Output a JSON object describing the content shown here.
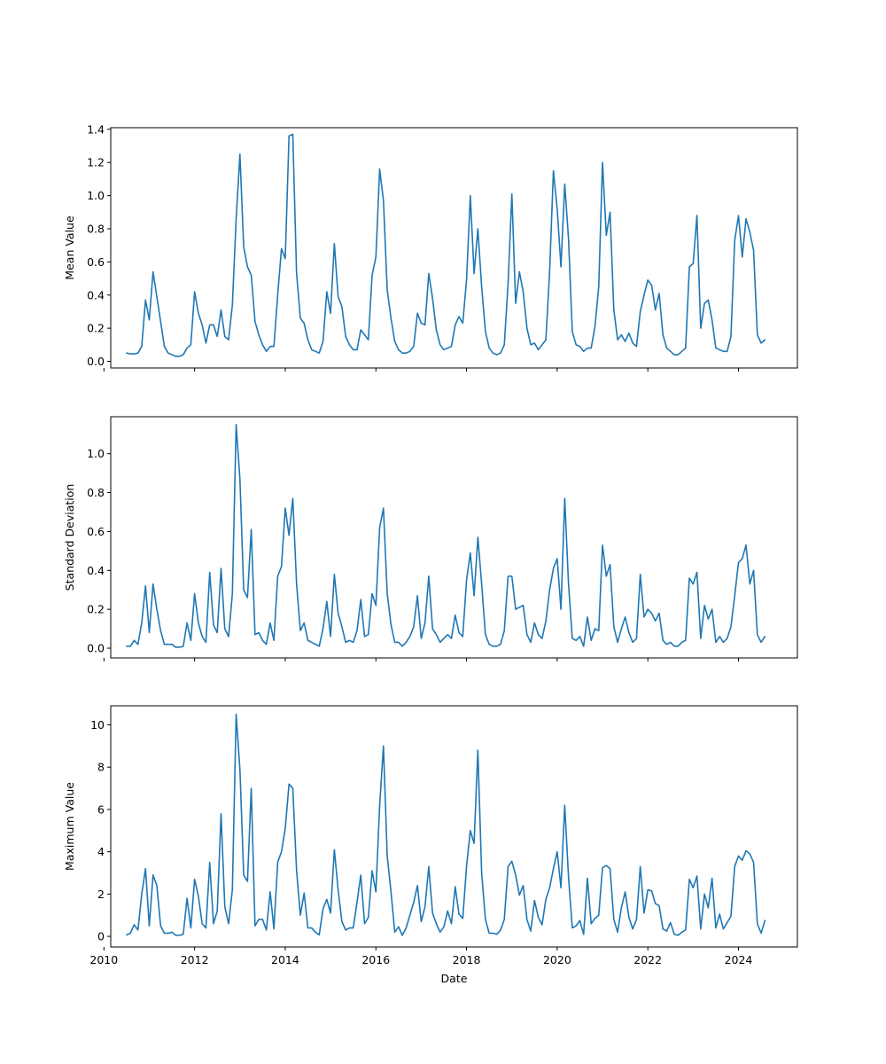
{
  "chart_data": [
    {
      "type": "line",
      "title": "",
      "xlabel": "",
      "ylabel": "Mean Value",
      "xlim": [
        2010.15,
        2025.3
      ],
      "ylim": [
        -0.04,
        1.41
      ],
      "yticks": [
        "0.0",
        "0.2",
        "0.4",
        "0.6",
        "0.8",
        "1.0",
        "1.2",
        "1.4"
      ],
      "xticks": [
        "2010",
        "2012",
        "2014",
        "2016",
        "2018",
        "2020",
        "2022",
        "2024"
      ],
      "show_xtick_labels": false,
      "color": "#1f77b4",
      "x": [
        "2010-07",
        "2010-08",
        "2010-09",
        "2010-10",
        "2010-11",
        "2010-12",
        "2011-01",
        "2011-02",
        "2011-03",
        "2011-04",
        "2011-05",
        "2011-06",
        "2011-07",
        "2011-08",
        "2011-09",
        "2011-10",
        "2011-11",
        "2011-12",
        "2012-01",
        "2012-02",
        "2012-03",
        "2012-04",
        "2012-05",
        "2012-06",
        "2012-07",
        "2012-08",
        "2012-09",
        "2012-10",
        "2012-11",
        "2012-12",
        "2013-01",
        "2013-02",
        "2013-03",
        "2013-04",
        "2013-05",
        "2013-06",
        "2013-07",
        "2013-08",
        "2013-09",
        "2013-10",
        "2013-11",
        "2013-12",
        "2014-01",
        "2014-02",
        "2014-03",
        "2014-04",
        "2014-05",
        "2014-06",
        "2014-07",
        "2014-08",
        "2014-09",
        "2014-10",
        "2014-11",
        "2014-12",
        "2015-01",
        "2015-02",
        "2015-03",
        "2015-04",
        "2015-05",
        "2015-06",
        "2015-07",
        "2015-08",
        "2015-09",
        "2015-10",
        "2015-11",
        "2015-12",
        "2016-01",
        "2016-02",
        "2016-03",
        "2016-04",
        "2016-05",
        "2016-06",
        "2016-07",
        "2016-08",
        "2016-09",
        "2016-10",
        "2016-11",
        "2016-12",
        "2017-01",
        "2017-02",
        "2017-03",
        "2017-04",
        "2017-05",
        "2017-06",
        "2017-07",
        "2017-08",
        "2017-09",
        "2017-10",
        "2017-11",
        "2017-12",
        "2018-01",
        "2018-02",
        "2018-03",
        "2018-04",
        "2018-05",
        "2018-06",
        "2018-07",
        "2018-08",
        "2018-09",
        "2018-10",
        "2018-11",
        "2018-12",
        "2019-01",
        "2019-02",
        "2019-03",
        "2019-04",
        "2019-05",
        "2019-06",
        "2019-07",
        "2019-08",
        "2019-09",
        "2019-10",
        "2019-11",
        "2019-12",
        "2020-01",
        "2020-02",
        "2020-03",
        "2020-04",
        "2020-05",
        "2020-06",
        "2020-07",
        "2020-08",
        "2020-09",
        "2020-10",
        "2020-11",
        "2020-12",
        "2021-01",
        "2021-02",
        "2021-03",
        "2021-04",
        "2021-05",
        "2021-06",
        "2021-07",
        "2021-08",
        "2021-09",
        "2021-10",
        "2021-11",
        "2021-12",
        "2022-01",
        "2022-02",
        "2022-03",
        "2022-04",
        "2022-05",
        "2022-06",
        "2022-07",
        "2022-08",
        "2022-09",
        "2022-10",
        "2022-11",
        "2022-12",
        "2023-01",
        "2023-02",
        "2023-03",
        "2023-04",
        "2023-05",
        "2023-06",
        "2023-07",
        "2023-08",
        "2023-09",
        "2023-10",
        "2023-11",
        "2023-12",
        "2024-01",
        "2024-02",
        "2024-03",
        "2024-04",
        "2024-05",
        "2024-06",
        "2024-07",
        "2024-08"
      ],
      "values": [
        0.05,
        0.045,
        0.045,
        0.05,
        0.09,
        0.37,
        0.25,
        0.54,
        0.39,
        0.24,
        0.09,
        0.05,
        0.04,
        0.03,
        0.03,
        0.04,
        0.08,
        0.1,
        0.42,
        0.29,
        0.22,
        0.11,
        0.22,
        0.22,
        0.15,
        0.31,
        0.15,
        0.13,
        0.34,
        0.86,
        1.25,
        0.69,
        0.57,
        0.52,
        0.24,
        0.16,
        0.1,
        0.06,
        0.09,
        0.09,
        0.4,
        0.68,
        0.62,
        1.36,
        1.37,
        0.53,
        0.26,
        0.23,
        0.13,
        0.07,
        0.06,
        0.05,
        0.12,
        0.42,
        0.29,
        0.71,
        0.39,
        0.33,
        0.15,
        0.1,
        0.07,
        0.07,
        0.19,
        0.16,
        0.13,
        0.52,
        0.63,
        1.16,
        0.97,
        0.43,
        0.26,
        0.12,
        0.07,
        0.05,
        0.05,
        0.06,
        0.09,
        0.29,
        0.23,
        0.22,
        0.53,
        0.38,
        0.19,
        0.1,
        0.07,
        0.08,
        0.09,
        0.22,
        0.27,
        0.23,
        0.49,
        1.0,
        0.53,
        0.8,
        0.45,
        0.18,
        0.08,
        0.05,
        0.04,
        0.05,
        0.1,
        0.47,
        1.01,
        0.35,
        0.54,
        0.42,
        0.2,
        0.1,
        0.11,
        0.07,
        0.1,
        0.13,
        0.54,
        1.15,
        0.92,
        0.57,
        1.07,
        0.74,
        0.18,
        0.1,
        0.09,
        0.06,
        0.08,
        0.08,
        0.21,
        0.45,
        1.2,
        0.76,
        0.9,
        0.31,
        0.13,
        0.16,
        0.12,
        0.17,
        0.11,
        0.09,
        0.3,
        0.4,
        0.49,
        0.46,
        0.31,
        0.41,
        0.16,
        0.08,
        0.06,
        0.04,
        0.04,
        0.06,
        0.08,
        0.57,
        0.59,
        0.88,
        0.2,
        0.35,
        0.37,
        0.25,
        0.08,
        0.07,
        0.06,
        0.06,
        0.15,
        0.73,
        0.88,
        0.63,
        0.86,
        0.78,
        0.67,
        0.16,
        0.11,
        0.13
      ]
    },
    {
      "type": "line",
      "title": "",
      "xlabel": "",
      "ylabel": "Standard Deviation",
      "xlim": [
        2010.15,
        2025.3
      ],
      "ylim": [
        -0.05,
        1.19
      ],
      "yticks": [
        "0.0",
        "0.2",
        "0.4",
        "0.6",
        "0.8",
        "1.0"
      ],
      "xticks": [
        "2010",
        "2012",
        "2014",
        "2016",
        "2018",
        "2020",
        "2022",
        "2024"
      ],
      "show_xtick_labels": false,
      "color": "#1f77b4",
      "x": [
        "2010-07",
        "2010-08",
        "2010-09",
        "2010-10",
        "2010-11",
        "2010-12",
        "2011-01",
        "2011-02",
        "2011-03",
        "2011-04",
        "2011-05",
        "2011-06",
        "2011-07",
        "2011-08",
        "2011-09",
        "2011-10",
        "2011-11",
        "2011-12",
        "2012-01",
        "2012-02",
        "2012-03",
        "2012-04",
        "2012-05",
        "2012-06",
        "2012-07",
        "2012-08",
        "2012-09",
        "2012-10",
        "2012-11",
        "2012-12",
        "2013-01",
        "2013-02",
        "2013-03",
        "2013-04",
        "2013-05",
        "2013-06",
        "2013-07",
        "2013-08",
        "2013-09",
        "2013-10",
        "2013-11",
        "2013-12",
        "2014-01",
        "2014-02",
        "2014-03",
        "2014-04",
        "2014-05",
        "2014-06",
        "2014-07",
        "2014-08",
        "2014-09",
        "2014-10",
        "2014-11",
        "2014-12",
        "2015-01",
        "2015-02",
        "2015-03",
        "2015-04",
        "2015-05",
        "2015-06",
        "2015-07",
        "2015-08",
        "2015-09",
        "2015-10",
        "2015-11",
        "2015-12",
        "2016-01",
        "2016-02",
        "2016-03",
        "2016-04",
        "2016-05",
        "2016-06",
        "2016-07",
        "2016-08",
        "2016-09",
        "2016-10",
        "2016-11",
        "2016-12",
        "2017-01",
        "2017-02",
        "2017-03",
        "2017-04",
        "2017-05",
        "2017-06",
        "2017-07",
        "2017-08",
        "2017-09",
        "2017-10",
        "2017-11",
        "2017-12",
        "2018-01",
        "2018-02",
        "2018-03",
        "2018-04",
        "2018-05",
        "2018-06",
        "2018-07",
        "2018-08",
        "2018-09",
        "2018-10",
        "2018-11",
        "2018-12",
        "2019-01",
        "2019-02",
        "2019-03",
        "2019-04",
        "2019-05",
        "2019-06",
        "2019-07",
        "2019-08",
        "2019-09",
        "2019-10",
        "2019-11",
        "2019-12",
        "2020-01",
        "2020-02",
        "2020-03",
        "2020-04",
        "2020-05",
        "2020-06",
        "2020-07",
        "2020-08",
        "2020-09",
        "2020-10",
        "2020-11",
        "2020-12",
        "2021-01",
        "2021-02",
        "2021-03",
        "2021-04",
        "2021-05",
        "2021-06",
        "2021-07",
        "2021-08",
        "2021-09",
        "2021-10",
        "2021-11",
        "2021-12",
        "2022-01",
        "2022-02",
        "2022-03",
        "2022-04",
        "2022-05",
        "2022-06",
        "2022-07",
        "2022-08",
        "2022-09",
        "2022-10",
        "2022-11",
        "2022-12",
        "2023-01",
        "2023-02",
        "2023-03",
        "2023-04",
        "2023-05",
        "2023-06",
        "2023-07",
        "2023-08",
        "2023-09",
        "2023-10",
        "2023-11",
        "2023-12",
        "2024-01",
        "2024-02",
        "2024-03",
        "2024-04",
        "2024-05",
        "2024-06",
        "2024-07",
        "2024-08"
      ],
      "values": [
        0.01,
        0.01,
        0.04,
        0.02,
        0.13,
        0.32,
        0.08,
        0.33,
        0.2,
        0.09,
        0.02,
        0.02,
        0.02,
        0.005,
        0.005,
        0.01,
        0.13,
        0.04,
        0.28,
        0.13,
        0.06,
        0.03,
        0.39,
        0.12,
        0.08,
        0.41,
        0.1,
        0.06,
        0.28,
        1.15,
        0.87,
        0.3,
        0.26,
        0.61,
        0.07,
        0.08,
        0.04,
        0.02,
        0.13,
        0.04,
        0.37,
        0.42,
        0.72,
        0.58,
        0.77,
        0.33,
        0.09,
        0.13,
        0.04,
        0.03,
        0.02,
        0.01,
        0.1,
        0.24,
        0.06,
        0.38,
        0.18,
        0.11,
        0.03,
        0.04,
        0.03,
        0.09,
        0.25,
        0.06,
        0.07,
        0.28,
        0.22,
        0.62,
        0.72,
        0.28,
        0.12,
        0.03,
        0.03,
        0.01,
        0.03,
        0.06,
        0.11,
        0.27,
        0.05,
        0.13,
        0.37,
        0.1,
        0.07,
        0.03,
        0.05,
        0.07,
        0.05,
        0.17,
        0.08,
        0.06,
        0.35,
        0.49,
        0.27,
        0.57,
        0.33,
        0.07,
        0.02,
        0.01,
        0.01,
        0.02,
        0.09,
        0.37,
        0.37,
        0.2,
        0.21,
        0.22,
        0.07,
        0.03,
        0.13,
        0.07,
        0.05,
        0.14,
        0.3,
        0.41,
        0.46,
        0.2,
        0.77,
        0.33,
        0.05,
        0.04,
        0.06,
        0.01,
        0.16,
        0.04,
        0.1,
        0.09,
        0.53,
        0.37,
        0.43,
        0.11,
        0.03,
        0.1,
        0.16,
        0.08,
        0.03,
        0.05,
        0.38,
        0.16,
        0.2,
        0.18,
        0.14,
        0.18,
        0.04,
        0.02,
        0.03,
        0.01,
        0.01,
        0.03,
        0.04,
        0.36,
        0.33,
        0.39,
        0.05,
        0.22,
        0.15,
        0.2,
        0.03,
        0.06,
        0.03,
        0.05,
        0.11,
        0.27,
        0.44,
        0.46,
        0.53,
        0.33,
        0.4,
        0.07,
        0.03,
        0.06
      ]
    },
    {
      "type": "line",
      "title": "",
      "xlabel": "Date",
      "ylabel": "Maximum Value",
      "xlim": [
        2010.15,
        2025.3
      ],
      "ylim": [
        -0.5,
        10.9
      ],
      "yticks": [
        "0",
        "2",
        "4",
        "6",
        "8",
        "10"
      ],
      "xticks": [
        "2010",
        "2012",
        "2014",
        "2016",
        "2018",
        "2020",
        "2022",
        "2024"
      ],
      "show_xtick_labels": true,
      "color": "#1f77b4",
      "x": [
        "2010-07",
        "2010-08",
        "2010-09",
        "2010-10",
        "2010-11",
        "2010-12",
        "2011-01",
        "2011-02",
        "2011-03",
        "2011-04",
        "2011-05",
        "2011-06",
        "2011-07",
        "2011-08",
        "2011-09",
        "2011-10",
        "2011-11",
        "2011-12",
        "2012-01",
        "2012-02",
        "2012-03",
        "2012-04",
        "2012-05",
        "2012-06",
        "2012-07",
        "2012-08",
        "2012-09",
        "2012-10",
        "2012-11",
        "2012-12",
        "2013-01",
        "2013-02",
        "2013-03",
        "2013-04",
        "2013-05",
        "2013-06",
        "2013-07",
        "2013-08",
        "2013-09",
        "2013-10",
        "2013-11",
        "2013-12",
        "2014-01",
        "2014-02",
        "2014-03",
        "2014-04",
        "2014-05",
        "2014-06",
        "2014-07",
        "2014-08",
        "2014-09",
        "2014-10",
        "2014-11",
        "2014-12",
        "2015-01",
        "2015-02",
        "2015-03",
        "2015-04",
        "2015-05",
        "2015-06",
        "2015-07",
        "2015-08",
        "2015-09",
        "2015-10",
        "2015-11",
        "2015-12",
        "2016-01",
        "2016-02",
        "2016-03",
        "2016-04",
        "2016-05",
        "2016-06",
        "2016-07",
        "2016-08",
        "2016-09",
        "2016-10",
        "2016-11",
        "2016-12",
        "2017-01",
        "2017-02",
        "2017-03",
        "2017-04",
        "2017-05",
        "2017-06",
        "2017-07",
        "2017-08",
        "2017-09",
        "2017-10",
        "2017-11",
        "2017-12",
        "2018-01",
        "2018-02",
        "2018-03",
        "2018-04",
        "2018-05",
        "2018-06",
        "2018-07",
        "2018-08",
        "2018-09",
        "2018-10",
        "2018-11",
        "2018-12",
        "2019-01",
        "2019-02",
        "2019-03",
        "2019-04",
        "2019-05",
        "2019-06",
        "2019-07",
        "2019-08",
        "2019-09",
        "2019-10",
        "2019-11",
        "2019-12",
        "2020-01",
        "2020-02",
        "2020-03",
        "2020-04",
        "2020-05",
        "2020-06",
        "2020-07",
        "2020-08",
        "2020-09",
        "2020-10",
        "2020-11",
        "2020-12",
        "2021-01",
        "2021-02",
        "2021-03",
        "2021-04",
        "2021-05",
        "2021-06",
        "2021-07",
        "2021-08",
        "2021-09",
        "2021-10",
        "2021-11",
        "2021-12",
        "2022-01",
        "2022-02",
        "2022-03",
        "2022-04",
        "2022-05",
        "2022-06",
        "2022-07",
        "2022-08",
        "2022-09",
        "2022-10",
        "2022-11",
        "2022-12",
        "2023-01",
        "2023-02",
        "2023-03",
        "2023-04",
        "2023-05",
        "2023-06",
        "2023-07",
        "2023-08",
        "2023-09",
        "2023-10",
        "2023-11",
        "2023-12",
        "2024-01",
        "2024-02",
        "2024-03",
        "2024-04",
        "2024-05",
        "2024-06",
        "2024-07",
        "2024-08"
      ],
      "values": [
        0.07,
        0.15,
        0.55,
        0.3,
        2.0,
        3.2,
        0.5,
        2.9,
        2.4,
        0.5,
        0.15,
        0.15,
        0.2,
        0.05,
        0.05,
        0.1,
        1.8,
        0.4,
        2.7,
        1.9,
        0.6,
        0.4,
        3.5,
        0.6,
        1.2,
        5.8,
        1.4,
        0.6,
        2.2,
        10.5,
        7.9,
        2.9,
        2.6,
        7.0,
        0.5,
        0.8,
        0.8,
        0.3,
        2.1,
        0.35,
        3.5,
        4.0,
        5.1,
        7.2,
        7.0,
        3.1,
        1.0,
        2.05,
        0.4,
        0.4,
        0.2,
        0.07,
        1.3,
        1.75,
        1.1,
        4.1,
        2.2,
        0.7,
        0.3,
        0.4,
        0.4,
        1.6,
        2.9,
        0.6,
        0.9,
        3.1,
        2.1,
        6.2,
        9.0,
        3.8,
        2.1,
        0.2,
        0.45,
        0.05,
        0.4,
        1.0,
        1.6,
        2.4,
        0.7,
        1.4,
        3.3,
        1.1,
        0.6,
        0.2,
        0.45,
        1.2,
        0.6,
        2.35,
        1.05,
        0.85,
        3.3,
        5.0,
        4.4,
        8.8,
        3.0,
        0.8,
        0.15,
        0.15,
        0.1,
        0.3,
        0.8,
        3.3,
        3.55,
        2.9,
        1.95,
        2.4,
        0.8,
        0.25,
        1.7,
        0.9,
        0.55,
        1.75,
        2.3,
        3.2,
        4.0,
        2.3,
        6.2,
        2.8,
        0.4,
        0.5,
        0.75,
        0.1,
        2.75,
        0.6,
        0.85,
        1.0,
        3.25,
        3.35,
        3.2,
        0.8,
        0.2,
        1.35,
        2.1,
        0.9,
        0.35,
        0.8,
        3.3,
        1.1,
        2.2,
        2.15,
        1.55,
        1.45,
        0.35,
        0.25,
        0.65,
        0.1,
        0.05,
        0.2,
        0.3,
        2.7,
        2.3,
        2.85,
        0.35,
        2.0,
        1.35,
        2.75,
        0.4,
        1.05,
        0.35,
        0.65,
        0.95,
        3.3,
        3.8,
        3.6,
        4.05,
        3.9,
        3.5,
        0.6,
        0.15,
        0.75
      ]
    }
  ]
}
